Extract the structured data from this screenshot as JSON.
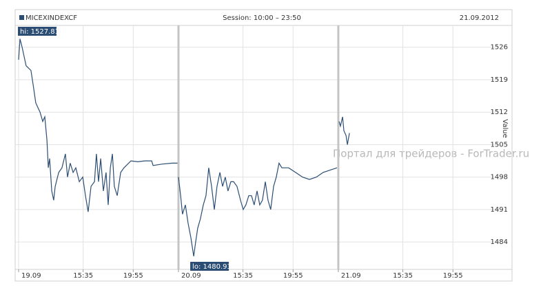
{
  "chart_data": {
    "type": "line",
    "title": "MICEXINDEXCF",
    "subtitle": "Session: 10:00 – 23:50",
    "date": "21.09.2012",
    "y_label": "Value",
    "watermark": "Портал для трейдеров - ForTrader.ru",
    "annotations": [
      "hi: 1527.81",
      "lo: 1480.93"
    ],
    "grid": true,
    "xlim": [
      -18,
      2562
    ],
    "ylim": [
      1478.1,
      1530.7
    ],
    "yticks": [
      1484,
      1491,
      1498,
      1505,
      1512,
      1519,
      1526
    ],
    "xticks": [
      {
        "value": 0,
        "label": "19.09"
      },
      {
        "value": 335,
        "label": "15:35"
      },
      {
        "value": 595,
        "label": "19:55"
      },
      {
        "value": 830,
        "label": "20.09"
      },
      {
        "value": 1165,
        "label": "15:35"
      },
      {
        "value": 1425,
        "label": "19:55"
      },
      {
        "value": 1660,
        "label": "21.09"
      },
      {
        "value": 1995,
        "label": "15:35"
      },
      {
        "value": 2255,
        "label": "19:55"
      }
    ],
    "x": [
      0,
      7,
      18,
      39,
      64,
      75,
      89,
      100,
      111,
      125,
      136,
      147,
      154,
      161,
      172,
      182,
      190,
      208,
      225,
      243,
      254,
      268,
      283,
      297,
      315,
      333,
      347,
      361,
      376,
      394,
      404,
      415,
      426,
      440,
      454,
      465,
      476,
      487,
      497,
      512,
      530,
      547,
      583,
      619,
      655,
      691,
      698,
      744,
      798,
      825,
      828,
      830,
      841,
      851,
      866,
      880,
      894,
      909,
      919,
      930,
      944,
      959,
      973,
      987,
      1002,
      1016,
      1030,
      1045,
      1059,
      1073,
      1087,
      1102,
      1116,
      1134,
      1152,
      1166,
      1180,
      1195,
      1209,
      1223,
      1238,
      1252,
      1266,
      1281,
      1295,
      1309,
      1324,
      1338,
      1352,
      1367,
      1402,
      1438,
      1474,
      1510,
      1546,
      1581,
      1617,
      1653,
      1656,
      1664,
      1671,
      1682,
      1689,
      1700,
      1707,
      1718
    ],
    "series": [
      {
        "name": "MICEXINDEXCF",
        "color": "#2b4d73",
        "values": [
          1523.3,
          1527.81,
          1526,
          1522,
          1521,
          1518,
          1514,
          1513,
          1512,
          1510,
          1511,
          1506,
          1500,
          1502,
          1495,
          1493,
          1496,
          1499,
          1500,
          1503,
          1498,
          1501,
          1499,
          1500,
          1497,
          1498,
          1494,
          1490.5,
          1496,
          1497,
          1503,
          1497,
          1502,
          1495,
          1499,
          1492,
          1500,
          1503,
          1496,
          1494,
          1499,
          1500,
          1501.5,
          1501.3,
          1501.5,
          1501.5,
          1500.5,
          1500.8,
          1501,
          1501,
          null,
          1498,
          1494,
          1490,
          1492,
          1488,
          1485,
          1480.93,
          1484,
          1487,
          1489,
          1492,
          1494,
          1500,
          1496,
          1491,
          1496,
          1499,
          1496,
          1498,
          1495,
          1497,
          1497,
          1496,
          1493,
          1491,
          1492,
          1494,
          1494,
          1492,
          1495,
          1492,
          1493,
          1497,
          1493,
          1491,
          1496,
          1498,
          1501,
          1500,
          1500,
          1499,
          1498,
          1497.5,
          1498,
          1499,
          1499.5,
          1500,
          null,
          1510,
          1509,
          1511,
          1508,
          1507,
          1505,
          1507.5
        ]
      }
    ]
  }
}
